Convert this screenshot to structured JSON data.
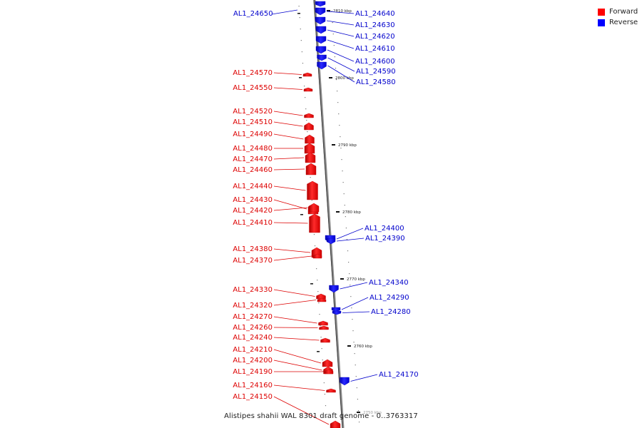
{
  "genome": {
    "caption": "Alistipes shahii WAL 8301 draft genome - 0..3763317",
    "tick_labels": [
      "2810 kbp",
      "2800 kbp",
      "2790 kbp",
      "2780 kbp",
      "2770 kbp",
      "2760 kbp",
      "2750 kbp"
    ]
  },
  "legend": {
    "forward": {
      "label": "Forward",
      "color": "#ff0000"
    },
    "reverse": {
      "label": "Reverse",
      "color": "#0000ff"
    }
  },
  "genes": {
    "reverse": [
      "AL1_24650",
      "AL1_24640",
      "AL1_24630",
      "AL1_24620",
      "AL1_24610",
      "AL1_24600",
      "AL1_24590",
      "AL1_24580",
      "AL1_24400",
      "AL1_24390",
      "AL1_24340",
      "AL1_24290",
      "AL1_24280",
      "AL1_24170"
    ],
    "forward": [
      "AL1_24570",
      "AL1_24550",
      "AL1_24520",
      "AL1_24510",
      "AL1_24490",
      "AL1_24480",
      "AL1_24470",
      "AL1_24460",
      "AL1_24440",
      "AL1_24430",
      "AL1_24420",
      "AL1_24410",
      "AL1_24380",
      "AL1_24370",
      "AL1_24330",
      "AL1_24320",
      "AL1_24270",
      "AL1_24260",
      "AL1_24240",
      "AL1_24210",
      "AL1_24200",
      "AL1_24190",
      "AL1_24160",
      "AL1_24150"
    ]
  }
}
